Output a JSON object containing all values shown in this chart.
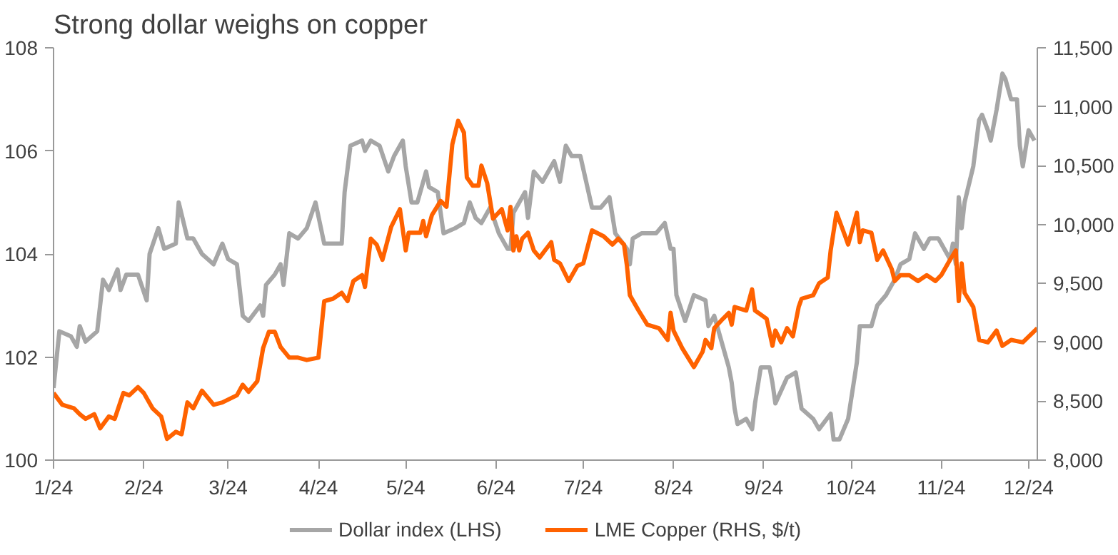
{
  "chart_data": {
    "type": "line",
    "title": "Strong dollar weighs on copper",
    "xlim": [
      "2024-01-01",
      "2024-12-04"
    ],
    "xticks": [
      {
        "value": "2024-01-01",
        "label": "1/24"
      },
      {
        "value": "2024-02-01",
        "label": "2/24"
      },
      {
        "value": "2024-03-01",
        "label": "3/24"
      },
      {
        "value": "2024-04-01",
        "label": "4/24"
      },
      {
        "value": "2024-05-01",
        "label": "5/24"
      },
      {
        "value": "2024-06-01",
        "label": "6/24"
      },
      {
        "value": "2024-07-01",
        "label": "7/24"
      },
      {
        "value": "2024-08-01",
        "label": "8/24"
      },
      {
        "value": "2024-09-01",
        "label": "9/24"
      },
      {
        "value": "2024-10-01",
        "label": "10/24"
      },
      {
        "value": "2024-11-01",
        "label": "11/24"
      },
      {
        "value": "2024-12-01",
        "label": "12/24"
      }
    ],
    "ylim": [
      100,
      108
    ],
    "yticks": [
      100,
      102,
      104,
      106,
      108
    ],
    "y2lim": [
      8000,
      11500
    ],
    "y2ticks": [
      {
        "value": 8000,
        "label": "8,000"
      },
      {
        "value": 8500,
        "label": "8,500"
      },
      {
        "value": 9000,
        "label": "9,000"
      },
      {
        "value": 9500,
        "label": "9,500"
      },
      {
        "value": 10000,
        "label": "10,000"
      },
      {
        "value": 10500,
        "label": "10,500"
      },
      {
        "value": 11000,
        "label": "11,000"
      },
      {
        "value": 11500,
        "label": "11,500"
      }
    ],
    "grid": false,
    "legend": "bottom",
    "marker": "none",
    "line_style": "solid",
    "series": [
      {
        "name": "Dollar index (LHS)",
        "color": "#a6a6a6",
        "x": [
          "2024-01-01",
          "2024-01-03",
          "2024-01-07",
          "2024-01-09",
          "2024-01-10",
          "2024-01-12",
          "2024-01-16",
          "2024-01-18",
          "2024-01-20",
          "2024-01-23",
          "2024-01-24",
          "2024-01-26",
          "2024-01-30",
          "2024-02-02",
          "2024-02-03",
          "2024-02-06",
          "2024-02-08",
          "2024-02-12",
          "2024-02-13",
          "2024-02-16",
          "2024-02-18",
          "2024-02-21",
          "2024-02-25",
          "2024-02-28",
          "2024-03-01",
          "2024-03-04",
          "2024-03-06",
          "2024-03-08",
          "2024-03-12",
          "2024-03-13",
          "2024-03-14",
          "2024-03-17",
          "2024-03-19",
          "2024-03-20",
          "2024-03-22",
          "2024-03-25",
          "2024-03-28",
          "2024-03-31",
          "2024-04-03",
          "2024-04-06",
          "2024-04-09",
          "2024-04-10",
          "2024-04-12",
          "2024-04-16",
          "2024-04-17",
          "2024-04-19",
          "2024-04-22",
          "2024-04-25",
          "2024-04-27",
          "2024-04-30",
          "2024-05-01",
          "2024-05-03",
          "2024-05-05",
          "2024-05-08",
          "2024-05-09",
          "2024-05-12",
          "2024-05-14",
          "2024-05-18",
          "2024-05-21",
          "2024-05-23",
          "2024-05-25",
          "2024-05-27",
          "2024-05-30",
          "2024-06-02",
          "2024-06-05",
          "2024-06-06",
          "2024-06-07",
          "2024-06-11",
          "2024-06-12",
          "2024-06-14",
          "2024-06-17",
          "2024-06-21",
          "2024-06-23",
          "2024-06-25",
          "2024-06-27",
          "2024-06-30",
          "2024-07-04",
          "2024-07-07",
          "2024-07-10",
          "2024-07-12",
          "2024-07-16",
          "2024-07-17",
          "2024-07-18",
          "2024-07-21",
          "2024-07-26",
          "2024-07-29",
          "2024-07-31",
          "2024-08-01",
          "2024-08-02",
          "2024-08-05",
          "2024-08-08",
          "2024-08-12",
          "2024-08-13",
          "2024-08-15",
          "2024-08-17",
          "2024-08-20",
          "2024-08-21",
          "2024-08-22",
          "2024-08-23",
          "2024-08-26",
          "2024-08-28",
          "2024-08-29",
          "2024-08-31",
          "2024-09-03",
          "2024-09-04",
          "2024-09-05",
          "2024-09-09",
          "2024-09-12",
          "2024-09-14",
          "2024-09-18",
          "2024-09-20",
          "2024-09-24",
          "2024-09-25",
          "2024-09-27",
          "2024-09-30",
          "2024-10-03",
          "2024-10-04",
          "2024-10-08",
          "2024-10-10",
          "2024-10-13",
          "2024-10-16",
          "2024-10-18",
          "2024-10-21",
          "2024-10-23",
          "2024-10-26",
          "2024-10-28",
          "2024-10-31",
          "2024-11-02",
          "2024-11-04",
          "2024-11-05",
          "2024-11-06",
          "2024-11-07",
          "2024-11-08",
          "2024-11-09",
          "2024-11-12",
          "2024-11-14",
          "2024-11-15",
          "2024-11-17",
          "2024-11-18",
          "2024-11-20",
          "2024-11-22",
          "2024-11-23",
          "2024-11-25",
          "2024-11-27",
          "2024-11-28",
          "2024-11-29",
          "2024-12-01",
          "2024-12-03"
        ],
        "values": [
          101.4,
          102.5,
          102.4,
          102.2,
          102.6,
          102.3,
          102.5,
          103.5,
          103.3,
          103.7,
          103.3,
          103.6,
          103.6,
          103.1,
          104.0,
          104.5,
          104.1,
          104.2,
          105.0,
          104.3,
          104.3,
          104.0,
          103.8,
          104.2,
          103.9,
          103.8,
          102.8,
          102.7,
          103.0,
          102.8,
          103.4,
          103.6,
          103.8,
          103.4,
          104.4,
          104.3,
          104.5,
          105.0,
          104.2,
          104.2,
          104.2,
          105.2,
          106.1,
          106.2,
          106.0,
          106.2,
          106.1,
          105.6,
          105.9,
          106.2,
          105.7,
          105.0,
          105.0,
          105.6,
          105.3,
          105.2,
          104.4,
          104.5,
          104.6,
          105.0,
          104.7,
          104.6,
          104.9,
          104.4,
          104.1,
          104.1,
          104.8,
          105.2,
          104.7,
          105.6,
          105.4,
          105.8,
          105.4,
          106.1,
          105.9,
          105.9,
          104.9,
          104.9,
          105.1,
          104.4,
          104.1,
          103.8,
          104.3,
          104.4,
          104.4,
          104.6,
          104.1,
          104.1,
          103.2,
          102.7,
          103.2,
          103.1,
          102.6,
          102.8,
          102.4,
          101.8,
          101.5,
          101.0,
          100.7,
          100.8,
          100.6,
          101.1,
          101.8,
          101.8,
          101.5,
          101.1,
          101.6,
          101.7,
          101.0,
          100.8,
          100.6,
          100.9,
          100.4,
          100.4,
          100.8,
          101.9,
          102.6,
          102.6,
          103.0,
          103.2,
          103.5,
          103.8,
          103.9,
          104.4,
          104.1,
          104.3,
          104.3,
          104.1,
          103.9,
          104.2,
          103.8,
          105.1,
          104.5,
          105.0,
          105.7,
          106.6,
          106.7,
          106.4,
          106.2,
          106.8,
          107.5,
          107.4,
          107.0,
          107.0,
          106.1,
          105.7,
          106.4,
          106.2
        ]
      },
      {
        "name": "LME Copper (RHS, $/t)",
        "color": "#ff6200",
        "axis": "y2",
        "x": [
          "2024-01-01",
          "2024-01-04",
          "2024-01-08",
          "2024-01-10",
          "2024-01-12",
          "2024-01-15",
          "2024-01-17",
          "2024-01-20",
          "2024-01-22",
          "2024-01-25",
          "2024-01-27",
          "2024-01-30",
          "2024-02-01",
          "2024-02-04",
          "2024-02-07",
          "2024-02-09",
          "2024-02-12",
          "2024-02-14",
          "2024-02-16",
          "2024-02-18",
          "2024-02-21",
          "2024-02-25",
          "2024-02-28",
          "2024-03-04",
          "2024-03-06",
          "2024-03-08",
          "2024-03-11",
          "2024-03-13",
          "2024-03-15",
          "2024-03-17",
          "2024-03-19",
          "2024-03-22",
          "2024-03-25",
          "2024-03-28",
          "2024-04-01",
          "2024-04-03",
          "2024-04-06",
          "2024-04-09",
          "2024-04-11",
          "2024-04-13",
          "2024-04-16",
          "2024-04-17",
          "2024-04-19",
          "2024-04-21",
          "2024-04-23",
          "2024-04-26",
          "2024-04-29",
          "2024-05-01",
          "2024-05-02",
          "2024-05-06",
          "2024-05-07",
          "2024-05-08",
          "2024-05-10",
          "2024-05-13",
          "2024-05-15",
          "2024-05-17",
          "2024-05-19",
          "2024-05-21",
          "2024-05-22",
          "2024-05-24",
          "2024-05-26",
          "2024-05-27",
          "2024-05-29",
          "2024-05-31",
          "2024-06-03",
          "2024-06-05",
          "2024-06-06",
          "2024-06-07",
          "2024-06-08",
          "2024-06-09",
          "2024-06-10",
          "2024-06-12",
          "2024-06-14",
          "2024-06-16",
          "2024-06-20",
          "2024-06-21",
          "2024-06-23",
          "2024-06-26",
          "2024-06-29",
          "2024-07-01",
          "2024-07-04",
          "2024-07-08",
          "2024-07-11",
          "2024-07-13",
          "2024-07-15",
          "2024-07-16",
          "2024-07-17",
          "2024-07-20",
          "2024-07-23",
          "2024-07-27",
          "2024-07-30",
          "2024-07-31",
          "2024-08-01",
          "2024-08-04",
          "2024-08-08",
          "2024-08-11",
          "2024-08-12",
          "2024-08-14",
          "2024-08-15",
          "2024-08-18",
          "2024-08-20",
          "2024-08-21",
          "2024-08-22",
          "2024-08-26",
          "2024-08-28",
          "2024-08-29",
          "2024-09-02",
          "2024-09-04",
          "2024-09-05",
          "2024-09-07",
          "2024-09-09",
          "2024-09-11",
          "2024-09-13",
          "2024-09-14",
          "2024-09-18",
          "2024-09-20",
          "2024-09-23",
          "2024-09-24",
          "2024-09-26",
          "2024-09-29",
          "2024-09-30",
          "2024-10-03",
          "2024-10-04",
          "2024-10-05",
          "2024-10-08",
          "2024-10-10",
          "2024-10-12",
          "2024-10-15",
          "2024-10-16",
          "2024-10-18",
          "2024-10-21",
          "2024-10-24",
          "2024-10-27",
          "2024-10-30",
          "2024-11-01",
          "2024-11-04",
          "2024-11-06",
          "2024-11-07",
          "2024-11-08",
          "2024-11-09",
          "2024-11-12",
          "2024-11-14",
          "2024-11-17",
          "2024-11-20",
          "2024-11-22",
          "2024-11-25",
          "2024-11-29",
          "2024-12-04"
        ],
        "values": [
          8570,
          8470,
          8440,
          8390,
          8350,
          8390,
          8270,
          8370,
          8350,
          8570,
          8550,
          8620,
          8570,
          8440,
          8370,
          8180,
          8240,
          8220,
          8490,
          8440,
          8590,
          8470,
          8490,
          8550,
          8640,
          8580,
          8670,
          8950,
          9090,
          9090,
          8960,
          8870,
          8870,
          8850,
          8870,
          9350,
          9370,
          9420,
          9350,
          9520,
          9570,
          9470,
          9880,
          9830,
          9700,
          9980,
          10130,
          9780,
          9930,
          9930,
          10030,
          9900,
          10080,
          10200,
          10150,
          10680,
          10880,
          10780,
          10400,
          10330,
          10330,
          10500,
          10350,
          10050,
          10130,
          9950,
          10150,
          9780,
          9900,
          9780,
          9880,
          9930,
          9780,
          9720,
          9850,
          9700,
          9670,
          9520,
          9650,
          9670,
          9950,
          9900,
          9830,
          9880,
          9830,
          9650,
          9400,
          9270,
          9150,
          9120,
          9020,
          9250,
          9100,
          8950,
          8790,
          8920,
          9020,
          8950,
          9120,
          9200,
          9250,
          9150,
          9300,
          9270,
          9450,
          9270,
          9200,
          8970,
          9100,
          9000,
          9120,
          9050,
          9300,
          9370,
          9400,
          9500,
          9550,
          9780,
          10100,
          9900,
          9830,
          10100,
          9850,
          9950,
          9930,
          9700,
          9780,
          9620,
          9520,
          9570,
          9570,
          9520,
          9570,
          9520,
          9570,
          9700,
          9780,
          9350,
          9670,
          9420,
          9300,
          9020,
          9000,
          9100,
          8970,
          9020,
          9000,
          9120
        ]
      }
    ]
  }
}
